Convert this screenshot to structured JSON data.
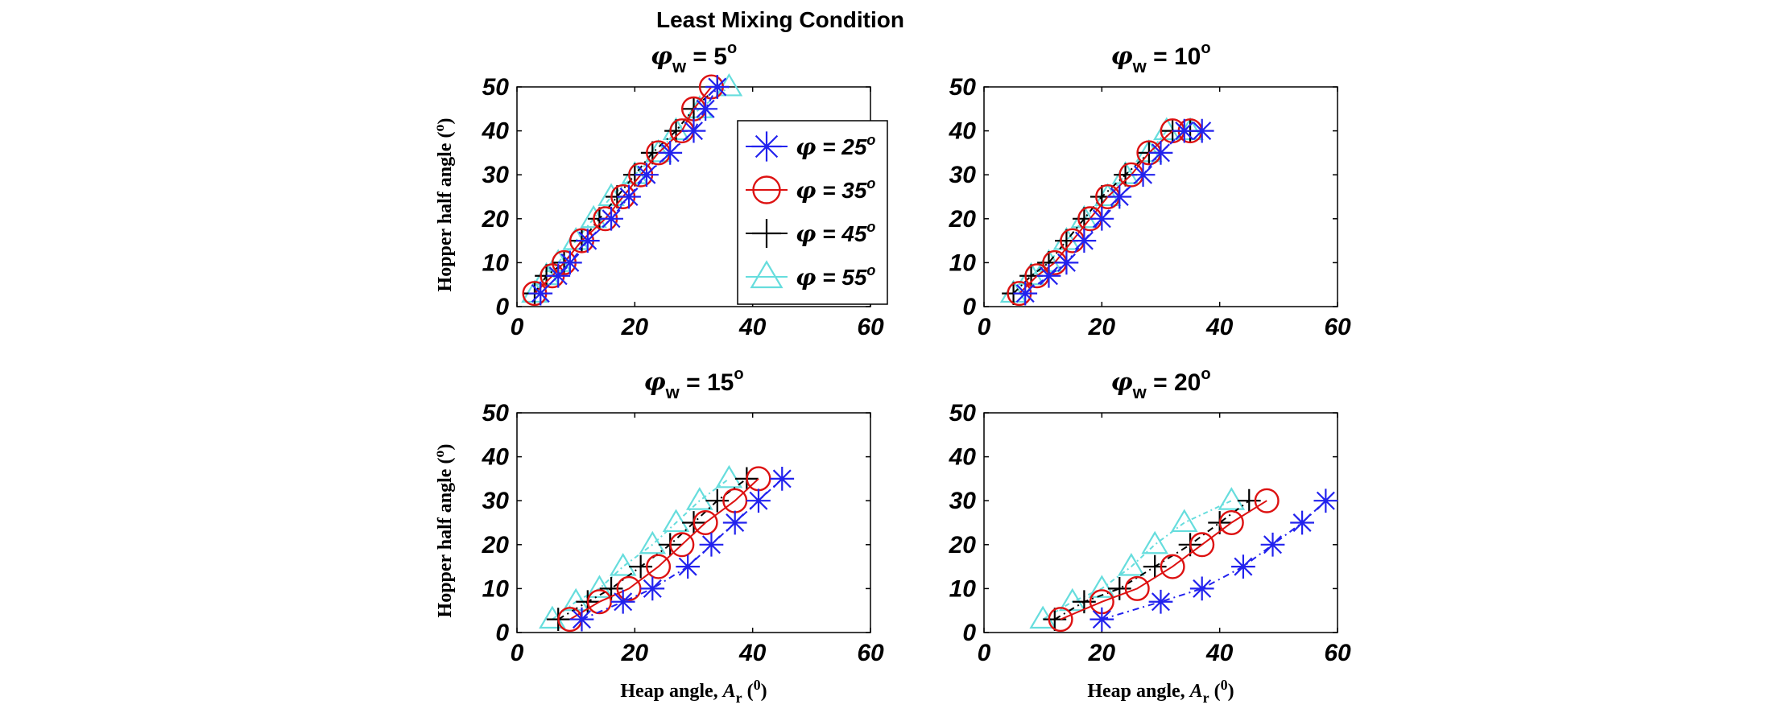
{
  "chart_data": {
    "type": "line",
    "title": "Least Mixing Condition",
    "legend": {
      "placement": "inside first panel, right",
      "entries": [
        {
          "phi": "25",
          "color": "#2222ee",
          "marker": "star"
        },
        {
          "phi": "35",
          "color": "#dd1111",
          "marker": "circle"
        },
        {
          "phi": "45",
          "color": "#000000",
          "marker": "plus"
        },
        {
          "phi": "55",
          "color": "#66dddd",
          "marker": "triangle"
        }
      ]
    },
    "axes": {
      "xlim": [
        0,
        60
      ],
      "ylim": [
        0,
        50
      ],
      "xticks": [
        0,
        20,
        40,
        60
      ],
      "yticks": [
        0,
        10,
        20,
        30,
        40,
        50
      ],
      "ylabel": "Hopper half angle (",
      "ylabel_unit": "o",
      "ylabel_end": ")",
      "xlabel": "Heap angle, ",
      "xlabel_var": "A",
      "xlabel_sub": "r",
      "xlabel_open": " (",
      "xlabel_unit": "0",
      "xlabel_end": ")"
    },
    "panels": [
      {
        "title_sym": "φ",
        "title_sub": "w",
        "title_val": " = 5",
        "title_deg": "o",
        "show_ylabel": true,
        "show_xlabel": false,
        "show_legend": true,
        "series": [
          {
            "phi": "25",
            "points": [
              [
                4,
                3
              ],
              [
                7,
                7
              ],
              [
                9,
                10
              ],
              [
                12,
                15
              ],
              [
                16,
                20
              ],
              [
                19,
                25
              ],
              [
                22,
                30
              ],
              [
                26,
                35
              ],
              [
                30,
                40
              ],
              [
                32,
                45
              ],
              [
                34,
                50
              ]
            ]
          },
          {
            "phi": "35",
            "points": [
              [
                3,
                3
              ],
              [
                6,
                7
              ],
              [
                8,
                10
              ],
              [
                11,
                15
              ],
              [
                15,
                20
              ],
              [
                18,
                25
              ],
              [
                21,
                30
              ],
              [
                24,
                35
              ],
              [
                28,
                40
              ],
              [
                30,
                45
              ],
              [
                33,
                50
              ]
            ]
          },
          {
            "phi": "45",
            "points": [
              [
                3,
                3
              ],
              [
                5,
                7
              ],
              [
                8,
                10
              ],
              [
                11,
                15
              ],
              [
                14,
                20
              ],
              [
                17,
                25
              ],
              [
                20,
                30
              ],
              [
                23,
                35
              ],
              [
                27,
                40
              ],
              [
                30,
                45
              ],
              [
                34,
                50
              ]
            ]
          },
          {
            "phi": "55",
            "points": [
              [
                3,
                3
              ],
              [
                5,
                7
              ],
              [
                7,
                10
              ],
              [
                10,
                15
              ],
              [
                13,
                20
              ],
              [
                16,
                25
              ],
              [
                20,
                30
              ],
              [
                24,
                35
              ],
              [
                27,
                40
              ],
              [
                31,
                45
              ],
              [
                36,
                50
              ]
            ]
          }
        ]
      },
      {
        "title_sym": "φ",
        "title_sub": "w",
        "title_val": " = 10",
        "title_deg": "o",
        "show_ylabel": false,
        "show_xlabel": false,
        "show_legend": false,
        "series": [
          {
            "phi": "25",
            "points": [
              [
                7,
                3
              ],
              [
                11,
                7
              ],
              [
                14,
                10
              ],
              [
                17,
                15
              ],
              [
                20,
                20
              ],
              [
                23,
                25
              ],
              [
                27,
                30
              ],
              [
                30,
                35
              ],
              [
                34,
                40
              ],
              [
                37,
                40
              ]
            ]
          },
          {
            "phi": "35",
            "points": [
              [
                6,
                3
              ],
              [
                9,
                7
              ],
              [
                12,
                10
              ],
              [
                15,
                15
              ],
              [
                18,
                20
              ],
              [
                21,
                25
              ],
              [
                25,
                30
              ],
              [
                28,
                35
              ],
              [
                32,
                40
              ],
              [
                35,
                40
              ]
            ]
          },
          {
            "phi": "45",
            "points": [
              [
                5,
                3
              ],
              [
                8,
                7
              ],
              [
                11,
                10
              ],
              [
                14,
                15
              ],
              [
                17,
                20
              ],
              [
                20,
                25
              ],
              [
                24,
                30
              ],
              [
                28,
                35
              ],
              [
                32,
                40
              ],
              [
                35,
                40
              ]
            ]
          },
          {
            "phi": "55",
            "points": [
              [
                5,
                3
              ],
              [
                8,
                7
              ],
              [
                11,
                10
              ],
              [
                14,
                15
              ],
              [
                17,
                20
              ],
              [
                21,
                25
              ],
              [
                24,
                30
              ],
              [
                28,
                35
              ],
              [
                31,
                40
              ],
              [
                35,
                40
              ]
            ]
          }
        ]
      },
      {
        "title_sym": "φ",
        "title_sub": "w",
        "title_val": " = 15",
        "title_deg": "o",
        "show_ylabel": true,
        "show_xlabel": true,
        "show_legend": false,
        "series": [
          {
            "phi": "25",
            "points": [
              [
                11,
                3
              ],
              [
                18,
                7
              ],
              [
                23,
                10
              ],
              [
                29,
                15
              ],
              [
                33,
                20
              ],
              [
                37,
                25
              ],
              [
                41,
                30
              ],
              [
                45,
                35
              ]
            ]
          },
          {
            "phi": "35",
            "points": [
              [
                9,
                3
              ],
              [
                14,
                7
              ],
              [
                19,
                10
              ],
              [
                24,
                15
              ],
              [
                28,
                20
              ],
              [
                32,
                25
              ],
              [
                37,
                30
              ],
              [
                41,
                35
              ]
            ]
          },
          {
            "phi": "45",
            "points": [
              [
                7,
                3
              ],
              [
                12,
                7
              ],
              [
                16,
                10
              ],
              [
                21,
                15
              ],
              [
                26,
                20
              ],
              [
                30,
                25
              ],
              [
                34,
                30
              ],
              [
                39,
                35
              ]
            ]
          },
          {
            "phi": "55",
            "points": [
              [
                6,
                3
              ],
              [
                10,
                7
              ],
              [
                14,
                10
              ],
              [
                18,
                15
              ],
              [
                23,
                20
              ],
              [
                27,
                25
              ],
              [
                31,
                30
              ],
              [
                36,
                35
              ]
            ]
          }
        ]
      },
      {
        "title_sym": "φ",
        "title_sub": "w",
        "title_val": " = 20",
        "title_deg": "o",
        "show_ylabel": false,
        "show_xlabel": true,
        "show_legend": false,
        "series": [
          {
            "phi": "25",
            "points": [
              [
                20,
                3
              ],
              [
                30,
                7
              ],
              [
                37,
                10
              ],
              [
                44,
                15
              ],
              [
                49,
                20
              ],
              [
                54,
                25
              ],
              [
                58,
                30
              ]
            ]
          },
          {
            "phi": "35",
            "points": [
              [
                13,
                3
              ],
              [
                20,
                7
              ],
              [
                26,
                10
              ],
              [
                32,
                15
              ],
              [
                37,
                20
              ],
              [
                42,
                25
              ],
              [
                48,
                30
              ]
            ]
          },
          {
            "phi": "45",
            "points": [
              [
                12,
                3
              ],
              [
                17,
                7
              ],
              [
                23,
                10
              ],
              [
                29,
                15
              ],
              [
                35,
                20
              ],
              [
                40,
                25
              ],
              [
                45,
                30
              ]
            ]
          },
          {
            "phi": "55",
            "points": [
              [
                10,
                3
              ],
              [
                15,
                7
              ],
              [
                20,
                10
              ],
              [
                25,
                15
              ],
              [
                29,
                20
              ],
              [
                34,
                25
              ],
              [
                42,
                30
              ]
            ]
          }
        ]
      }
    ]
  }
}
